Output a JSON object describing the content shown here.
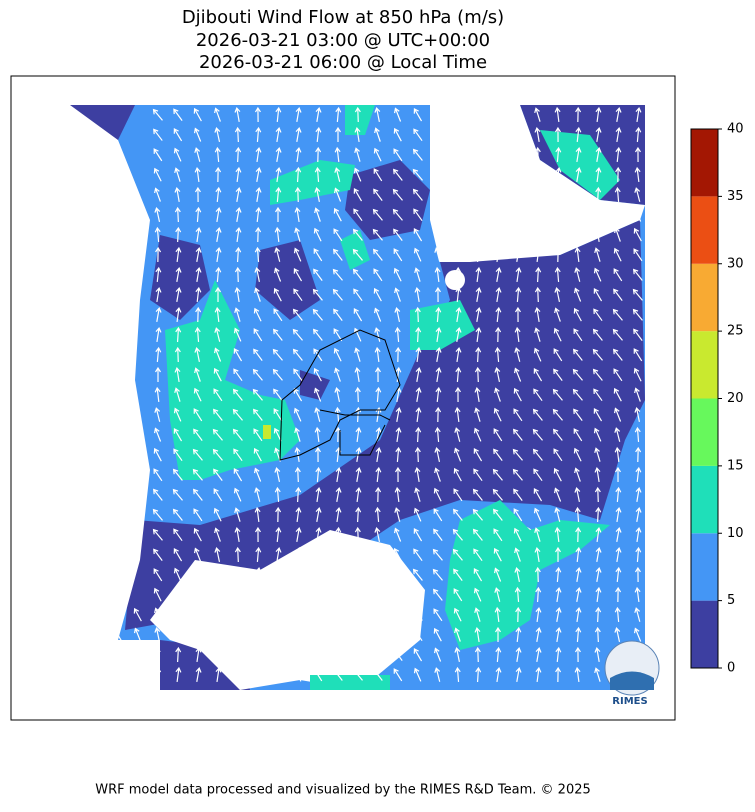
{
  "title": [
    "Djibouti Wind Flow at 850 hPa (m/s)",
    "2026-03-21 03:00 @ UTC+00:00",
    "2026-03-21 06:00 @ Local Time"
  ],
  "colorbar": {
    "ticks": [
      0,
      5,
      10,
      15,
      20,
      25,
      30,
      35,
      40
    ],
    "colors": [
      "#3d3fa1",
      "#4496f5",
      "#1fdfb9",
      "#67f85c",
      "#c9e92f",
      "#f8aa33",
      "#eb4f14",
      "#a31703"
    ]
  },
  "logo": "RIMES",
  "footer": "WRF model data processed and visualized by the RIMES R&D Team. © 2025"
}
